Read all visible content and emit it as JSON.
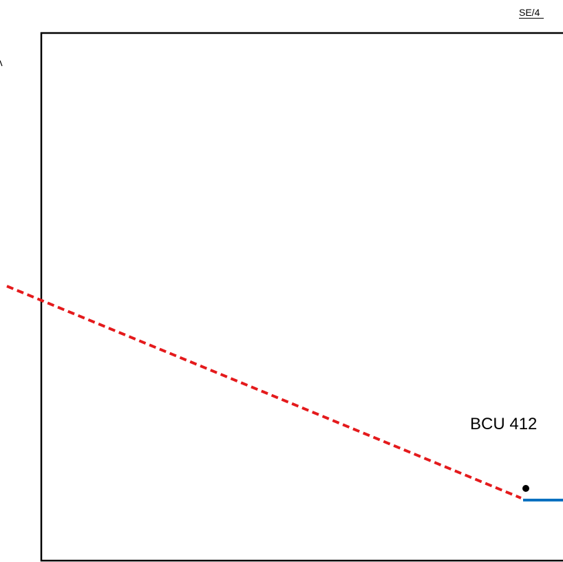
{
  "sheet_reference": "SE/4",
  "unit_label": "BCU 412",
  "colors": {
    "frame": "#000000",
    "dashed_route": "#e41a1c",
    "solid_route": "#0070c0",
    "junction_dot": "#000000"
  }
}
